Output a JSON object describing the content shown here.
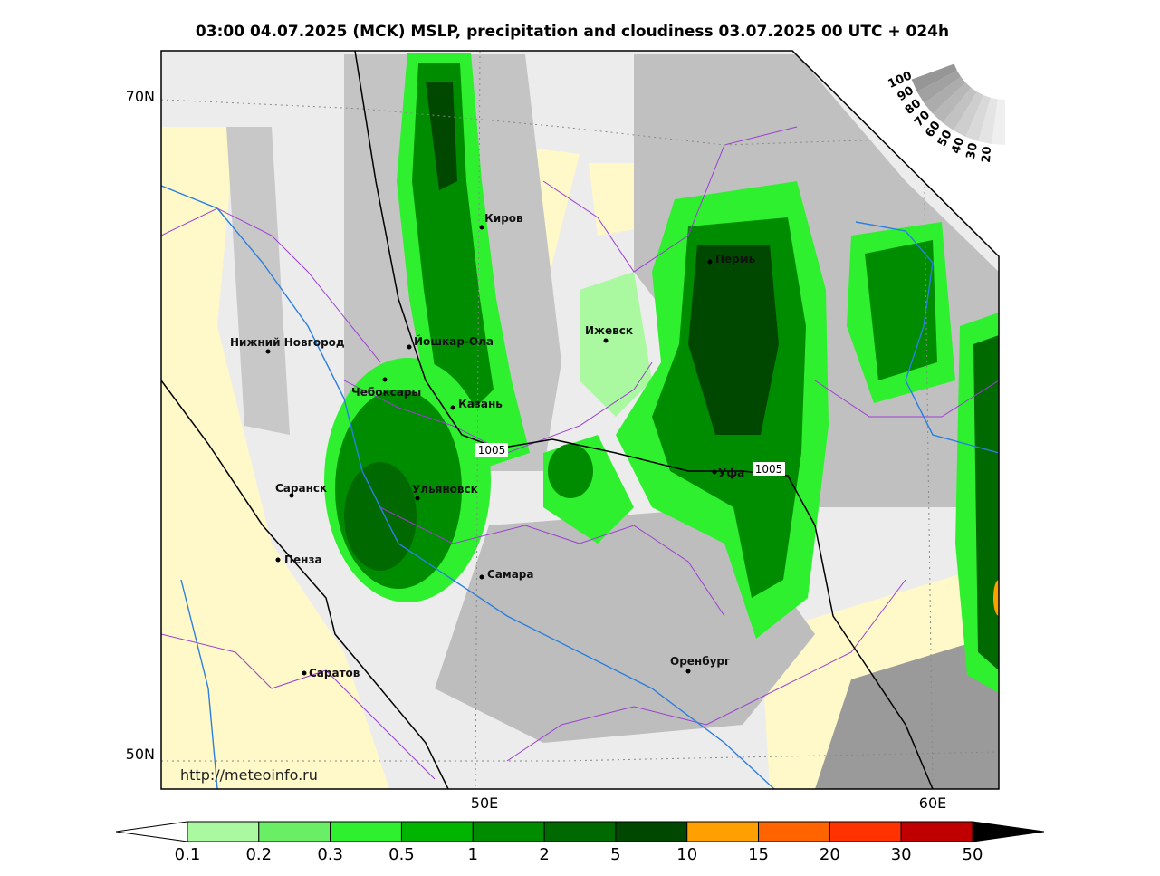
{
  "title": "03:00 04.07.2025 (MCK) MSLP, precipitation and cloudiness 03.07.2025 00 UTC + 024h",
  "lat_labels": [
    "70N",
    "50N"
  ],
  "lon_labels": [
    "50E",
    "60E"
  ],
  "isobar_labels": [
    "1005",
    "1005"
  ],
  "cities": [
    "Киров",
    "Пермь",
    "Нижний Новгород",
    "Йошкар-Ола",
    "Ижевск",
    "Чебоксары",
    "Казань",
    "Уфа",
    "Саранск",
    "Ульяновск",
    "Пенза",
    "Самара",
    "Оренбург",
    "Саратов"
  ],
  "url": "http://meteoinfo.ru",
  "cloud_scale": [
    100,
    90,
    80,
    70,
    60,
    50,
    40,
    30,
    20
  ],
  "colorbar": {
    "labels": [
      0.1,
      0.2,
      0.3,
      0.5,
      1,
      2,
      5,
      10,
      15,
      20,
      30,
      50
    ],
    "colors": [
      "#aaf8a0",
      "#6aee66",
      "#2ef02e",
      "#00b400",
      "#008c00",
      "#006a00",
      "#004800",
      "#ffa000",
      "#ff6400",
      "#ff3200",
      "#c00000",
      "#a00000"
    ],
    "under_color": "#ffffff",
    "over_color": "#000000"
  }
}
